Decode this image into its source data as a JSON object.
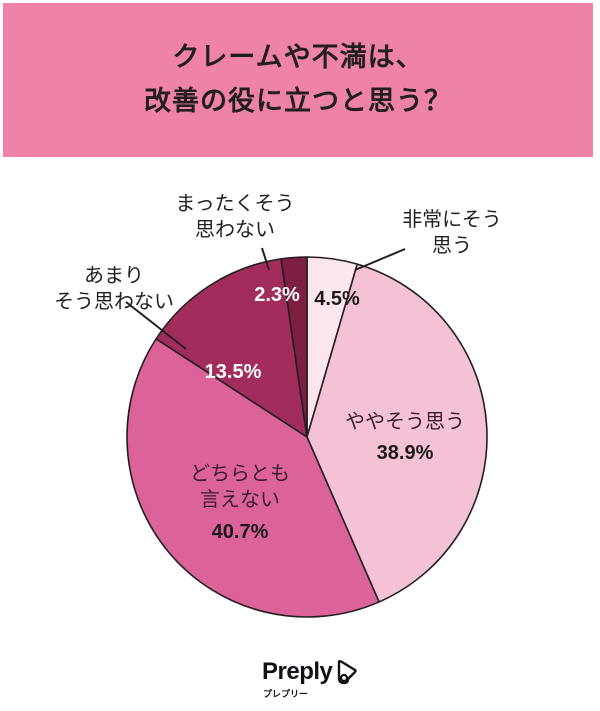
{
  "header": {
    "title_line1": "クレームや不満は、",
    "title_line2": "改善の役に立つと思う？",
    "background": "#ef82a9"
  },
  "chart_data": {
    "type": "pie",
    "title": "クレームや不満は、改善の役に立つと思う？",
    "start_angle": "12 o'clock, clockwise",
    "categories": [
      "非常にそう思う",
      "ややそう思う",
      "どちらとも言えない",
      "あまりそう思わない",
      "まったくそう思わない"
    ],
    "values": [
      4.5,
      38.9,
      40.7,
      13.5,
      2.3
    ],
    "unit": "%",
    "colors": [
      "#fce6ee",
      "#f4c1d6",
      "#db6399",
      "#a22d5c",
      "#7d1f43"
    ],
    "legend": "none (labels on/around slices)"
  },
  "labels": {
    "very_agree": {
      "line1": "非常にそう",
      "line2": "思う",
      "pct": "4.5%"
    },
    "somewhat_agree": {
      "line1": "ややそう思う",
      "pct": "38.9%"
    },
    "neutral": {
      "line1": "どちらとも",
      "line2": "言えない",
      "pct": "40.7%"
    },
    "not_much": {
      "line1": "あまり",
      "line2": "そう思わない",
      "pct": "13.5%"
    },
    "not_at_all": {
      "line1": "まったくそう",
      "line2": "思わない",
      "pct": "2.3%"
    }
  },
  "footer": {
    "brand": "Preply",
    "brand_kana": "プレプリー"
  }
}
